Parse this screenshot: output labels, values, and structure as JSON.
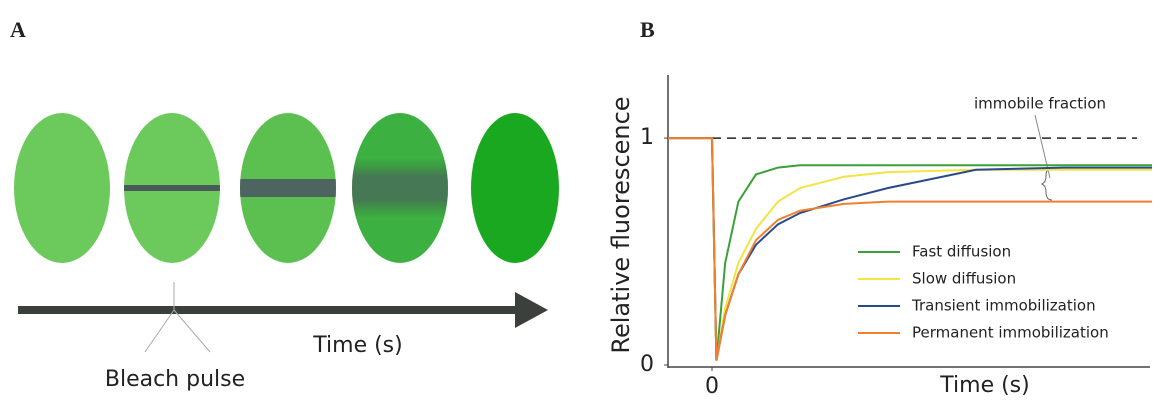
{
  "panel_labels": [
    "A",
    "B"
  ],
  "panel_a": {
    "time_label": "Time (s)",
    "pulse_label": "Bleach pulse"
  },
  "chart_data": {
    "type": "line",
    "y_label": "Relative fluorescence",
    "x_label": "Time (s)",
    "annotation": "immobile fraction",
    "x": [
      -1,
      0,
      0.1,
      0.3,
      0.6,
      1,
      1.5,
      2,
      3,
      4,
      6,
      8,
      10
    ],
    "series": [
      {
        "name": "Fast diffusion",
        "color": "#3aa03a",
        "values": [
          1,
          1,
          0.02,
          0.45,
          0.72,
          0.84,
          0.87,
          0.88,
          0.88,
          0.88,
          0.88,
          0.88,
          0.88
        ]
      },
      {
        "name": "Slow diffusion",
        "color": "#f2e442",
        "values": [
          1,
          1,
          0.02,
          0.25,
          0.45,
          0.6,
          0.72,
          0.78,
          0.83,
          0.85,
          0.86,
          0.86,
          0.86
        ]
      },
      {
        "name": "Transient immobilization",
        "color": "#2a4a8a",
        "values": [
          1,
          1,
          0.02,
          0.22,
          0.4,
          0.53,
          0.62,
          0.67,
          0.73,
          0.78,
          0.86,
          0.87,
          0.87
        ]
      },
      {
        "name": "Permanent immobilization",
        "color": "#f08030",
        "values": [
          1,
          1,
          0.02,
          0.22,
          0.4,
          0.55,
          0.64,
          0.68,
          0.71,
          0.72,
          0.72,
          0.72,
          0.72
        ]
      }
    ],
    "hline": 1,
    "xlim": [
      -1,
      10
    ],
    "ylim": [
      0,
      1.3
    ],
    "xticks": [
      0
    ],
    "yticks": [
      0,
      1
    ]
  }
}
